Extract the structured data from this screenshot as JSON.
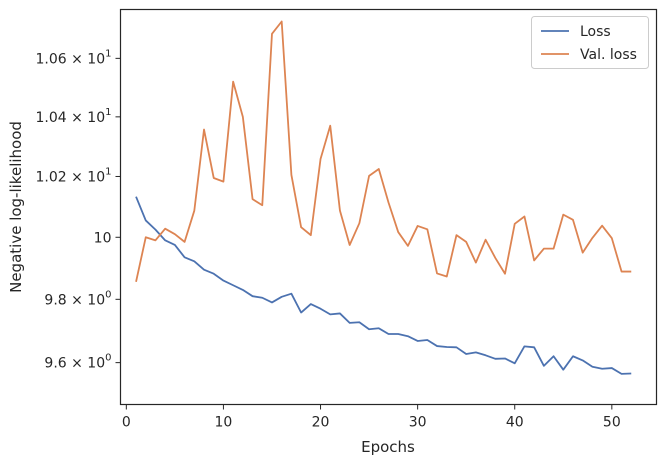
{
  "chart_data": {
    "type": "line",
    "title": "",
    "xlabel": "Epochs",
    "ylabel": "Negative log-likelihood",
    "yscale": "log",
    "xlim": [
      -0.6,
      54.6
    ],
    "ylim": [
      9.47,
      10.77
    ],
    "grid": false,
    "legend_position": "top-right",
    "x_ticks": [
      0,
      10,
      20,
      30,
      40,
      50
    ],
    "x_tick_labels": [
      "0",
      "10",
      "20",
      "30",
      "40",
      "50"
    ],
    "y_ticks": [
      {
        "value": 9.6,
        "base": "9.6",
        "exp": "0"
      },
      {
        "value": 9.8,
        "base": "9.8",
        "exp": "0"
      },
      {
        "value": 10.0,
        "base": "10",
        "exp": ""
      },
      {
        "value": 10.2,
        "base": "1.02",
        "exp": "1"
      },
      {
        "value": 10.4,
        "base": "1.04",
        "exp": "1"
      },
      {
        "value": 10.6,
        "base": "1.06",
        "exp": "1"
      }
    ],
    "x": [
      1,
      2,
      3,
      4,
      5,
      6,
      7,
      8,
      9,
      10,
      11,
      12,
      13,
      14,
      15,
      16,
      17,
      18,
      19,
      20,
      21,
      22,
      23,
      24,
      25,
      26,
      27,
      28,
      29,
      30,
      31,
      32,
      33,
      34,
      35,
      36,
      37,
      38,
      39,
      40,
      41,
      42,
      43,
      44,
      45,
      46,
      47,
      48,
      49,
      50,
      51,
      52
    ],
    "series": [
      {
        "name": "Loss",
        "color": "#4c72b0",
        "values": [
          10.133,
          10.055,
          10.025,
          9.99,
          9.975,
          9.935,
          9.922,
          9.895,
          9.882,
          9.86,
          9.845,
          9.83,
          9.81,
          9.805,
          9.79,
          9.808,
          9.818,
          9.758,
          9.785,
          9.77,
          9.752,
          9.755,
          9.725,
          9.727,
          9.705,
          9.708,
          9.69,
          9.69,
          9.683,
          9.668,
          9.671,
          9.652,
          9.649,
          9.648,
          9.627,
          9.632,
          9.623,
          9.612,
          9.613,
          9.598,
          9.651,
          9.648,
          9.59,
          9.62,
          9.578,
          9.62,
          9.607,
          9.587,
          9.581,
          9.583,
          9.565,
          9.566
        ]
      },
      {
        "name": "Val. loss",
        "color": "#dd8452",
        "values": [
          9.856,
          10.0,
          9.99,
          10.028,
          10.01,
          9.985,
          10.087,
          10.357,
          10.195,
          10.183,
          10.52,
          10.4,
          10.125,
          10.105,
          10.685,
          10.728,
          10.205,
          10.033,
          10.007,
          10.258,
          10.37,
          10.087,
          9.975,
          10.046,
          10.202,
          10.225,
          10.114,
          10.017,
          9.972,
          10.037,
          10.026,
          9.883,
          9.873,
          10.007,
          9.985,
          9.918,
          9.992,
          9.933,
          9.882,
          10.044,
          10.068,
          9.925,
          9.963,
          9.963,
          10.074,
          10.057,
          9.95,
          9.998,
          10.038,
          9.997,
          9.889,
          9.889
        ]
      }
    ]
  }
}
